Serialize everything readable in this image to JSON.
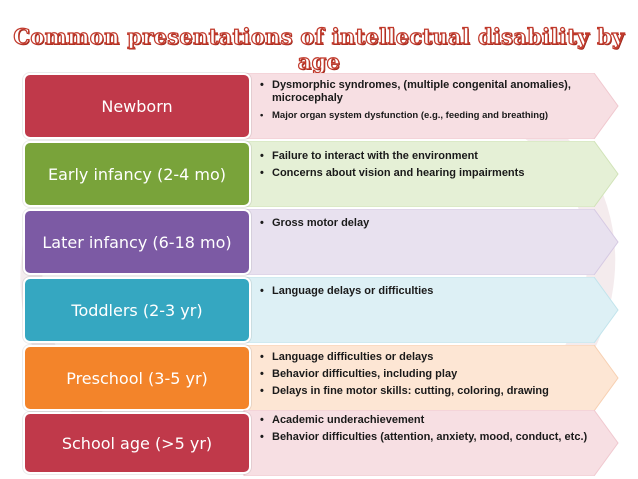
{
  "title": "Common presentations of intellectual disability by age",
  "colors": {
    "newborn": "#c0394a",
    "early_infancy": "#79a33a",
    "later_infancy": "#7c5aa4",
    "toddlers": "#35a7c1",
    "preschool": "#f3842a",
    "school_age": "#c0394a"
  },
  "rows": [
    {
      "label": "Newborn",
      "bullets": [
        "Dysmorphic syndromes, (multiple congenital anomalies), microcephaly",
        "Major organ system dysfunction (e.g., feeding and breathing)"
      ]
    },
    {
      "label": "Early infancy (2-4 mo)",
      "bullets": [
        "Failure to interact with the environment",
        "Concerns about vision and hearing impairments"
      ]
    },
    {
      "label": "Later infancy (6-18 mo)",
      "bullets": [
        "Gross motor delay"
      ]
    },
    {
      "label": "Toddlers (2-3 yr)",
      "bullets": [
        "Language delays or difficulties"
      ]
    },
    {
      "label": "Preschool (3-5 yr)",
      "bullets": [
        "Language difficulties or delays",
        "Behavior difficulties, including play",
        "Delays in fine motor skills: cutting, coloring, drawing"
      ]
    },
    {
      "label": "School age (>5 yr)",
      "bullets": [
        "Academic underachievement",
        "Behavior difficulties (attention, anxiety, mood, conduct, etc.)"
      ]
    }
  ]
}
